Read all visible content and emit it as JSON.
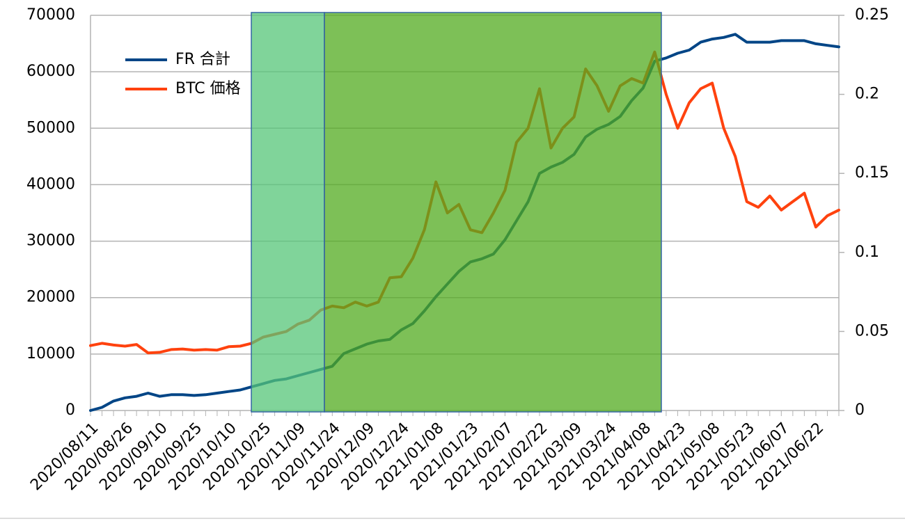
{
  "chart_data": {
    "type": "line",
    "categories": [
      "2020/08/11",
      null,
      null,
      "2020/08/26",
      null,
      null,
      "2020/09/10",
      null,
      null,
      "2020/09/25",
      null,
      null,
      "2020/10/10",
      null,
      null,
      "2020/10/25",
      null,
      null,
      "2020/11/09",
      null,
      null,
      "2020/11/24",
      null,
      null,
      "2020/12/09",
      null,
      null,
      "2020/12/24",
      null,
      null,
      "2021/01/08",
      null,
      null,
      "2021/01/23",
      null,
      null,
      "2021/02/07",
      null,
      null,
      "2021/02/22",
      null,
      null,
      "2021/03/09",
      null,
      null,
      "2021/03/24",
      null,
      null,
      "2021/04/08",
      null,
      null,
      "2021/04/23",
      null,
      null,
      "2021/05/08",
      null,
      null,
      "2021/05/23",
      null,
      null,
      "2021/06/07",
      null,
      null,
      "2021/06/22",
      null,
      null
    ],
    "series": [
      {
        "name": "FR 合計",
        "color": "#004586",
        "axis": "y2",
        "values": [
          0.0,
          0.002,
          0.006,
          0.008,
          0.009,
          0.011,
          0.009,
          0.01,
          0.01,
          0.0095,
          0.01,
          0.011,
          0.012,
          0.013,
          0.015,
          0.017,
          0.019,
          0.02,
          0.022,
          0.024,
          0.026,
          0.028,
          0.036,
          0.039,
          0.042,
          0.044,
          0.045,
          0.051,
          0.055,
          0.063,
          0.072,
          0.08,
          0.088,
          0.094,
          0.096,
          0.099,
          0.108,
          0.12,
          0.132,
          0.15,
          0.154,
          0.157,
          0.162,
          0.173,
          0.178,
          0.181,
          0.186,
          0.196,
          0.204,
          0.221,
          0.223,
          0.226,
          0.228,
          0.233,
          0.235,
          0.236,
          0.238,
          0.233,
          0.233,
          0.233,
          0.234,
          0.234,
          0.234,
          0.232,
          0.231,
          0.23
        ]
      },
      {
        "name": "BTC 価格",
        "color": "#ff420e",
        "values": [
          11500,
          11900,
          11600,
          11400,
          11700,
          10200,
          10300,
          10800,
          10900,
          10700,
          10800,
          10700,
          11300,
          11400,
          11900,
          13000,
          13500,
          14000,
          15300,
          16000,
          17800,
          18500,
          18200,
          19200,
          18500,
          19200,
          23500,
          23700,
          27000,
          32000,
          40500,
          35000,
          36500,
          32000,
          31500,
          35000,
          39000,
          47500,
          50000,
          57000,
          46500,
          50000,
          52000,
          60500,
          57500,
          53000,
          57500,
          58800,
          58000,
          63500,
          56000,
          50000,
          54500,
          57000,
          58000,
          50000,
          45000,
          37000,
          36000,
          38000,
          35500,
          37000,
          38500,
          32500,
          34500,
          35500
        ]
      }
    ],
    "ylim": [
      0,
      70000
    ],
    "yticks": [
      0,
      10000,
      20000,
      30000,
      40000,
      50000,
      60000,
      70000
    ],
    "y2lim": [
      0,
      0.25
    ],
    "y2ticks": [
      0,
      0.05,
      0.1,
      0.15,
      0.2,
      0.25
    ],
    "grid": true,
    "legend": "upper left"
  }
}
